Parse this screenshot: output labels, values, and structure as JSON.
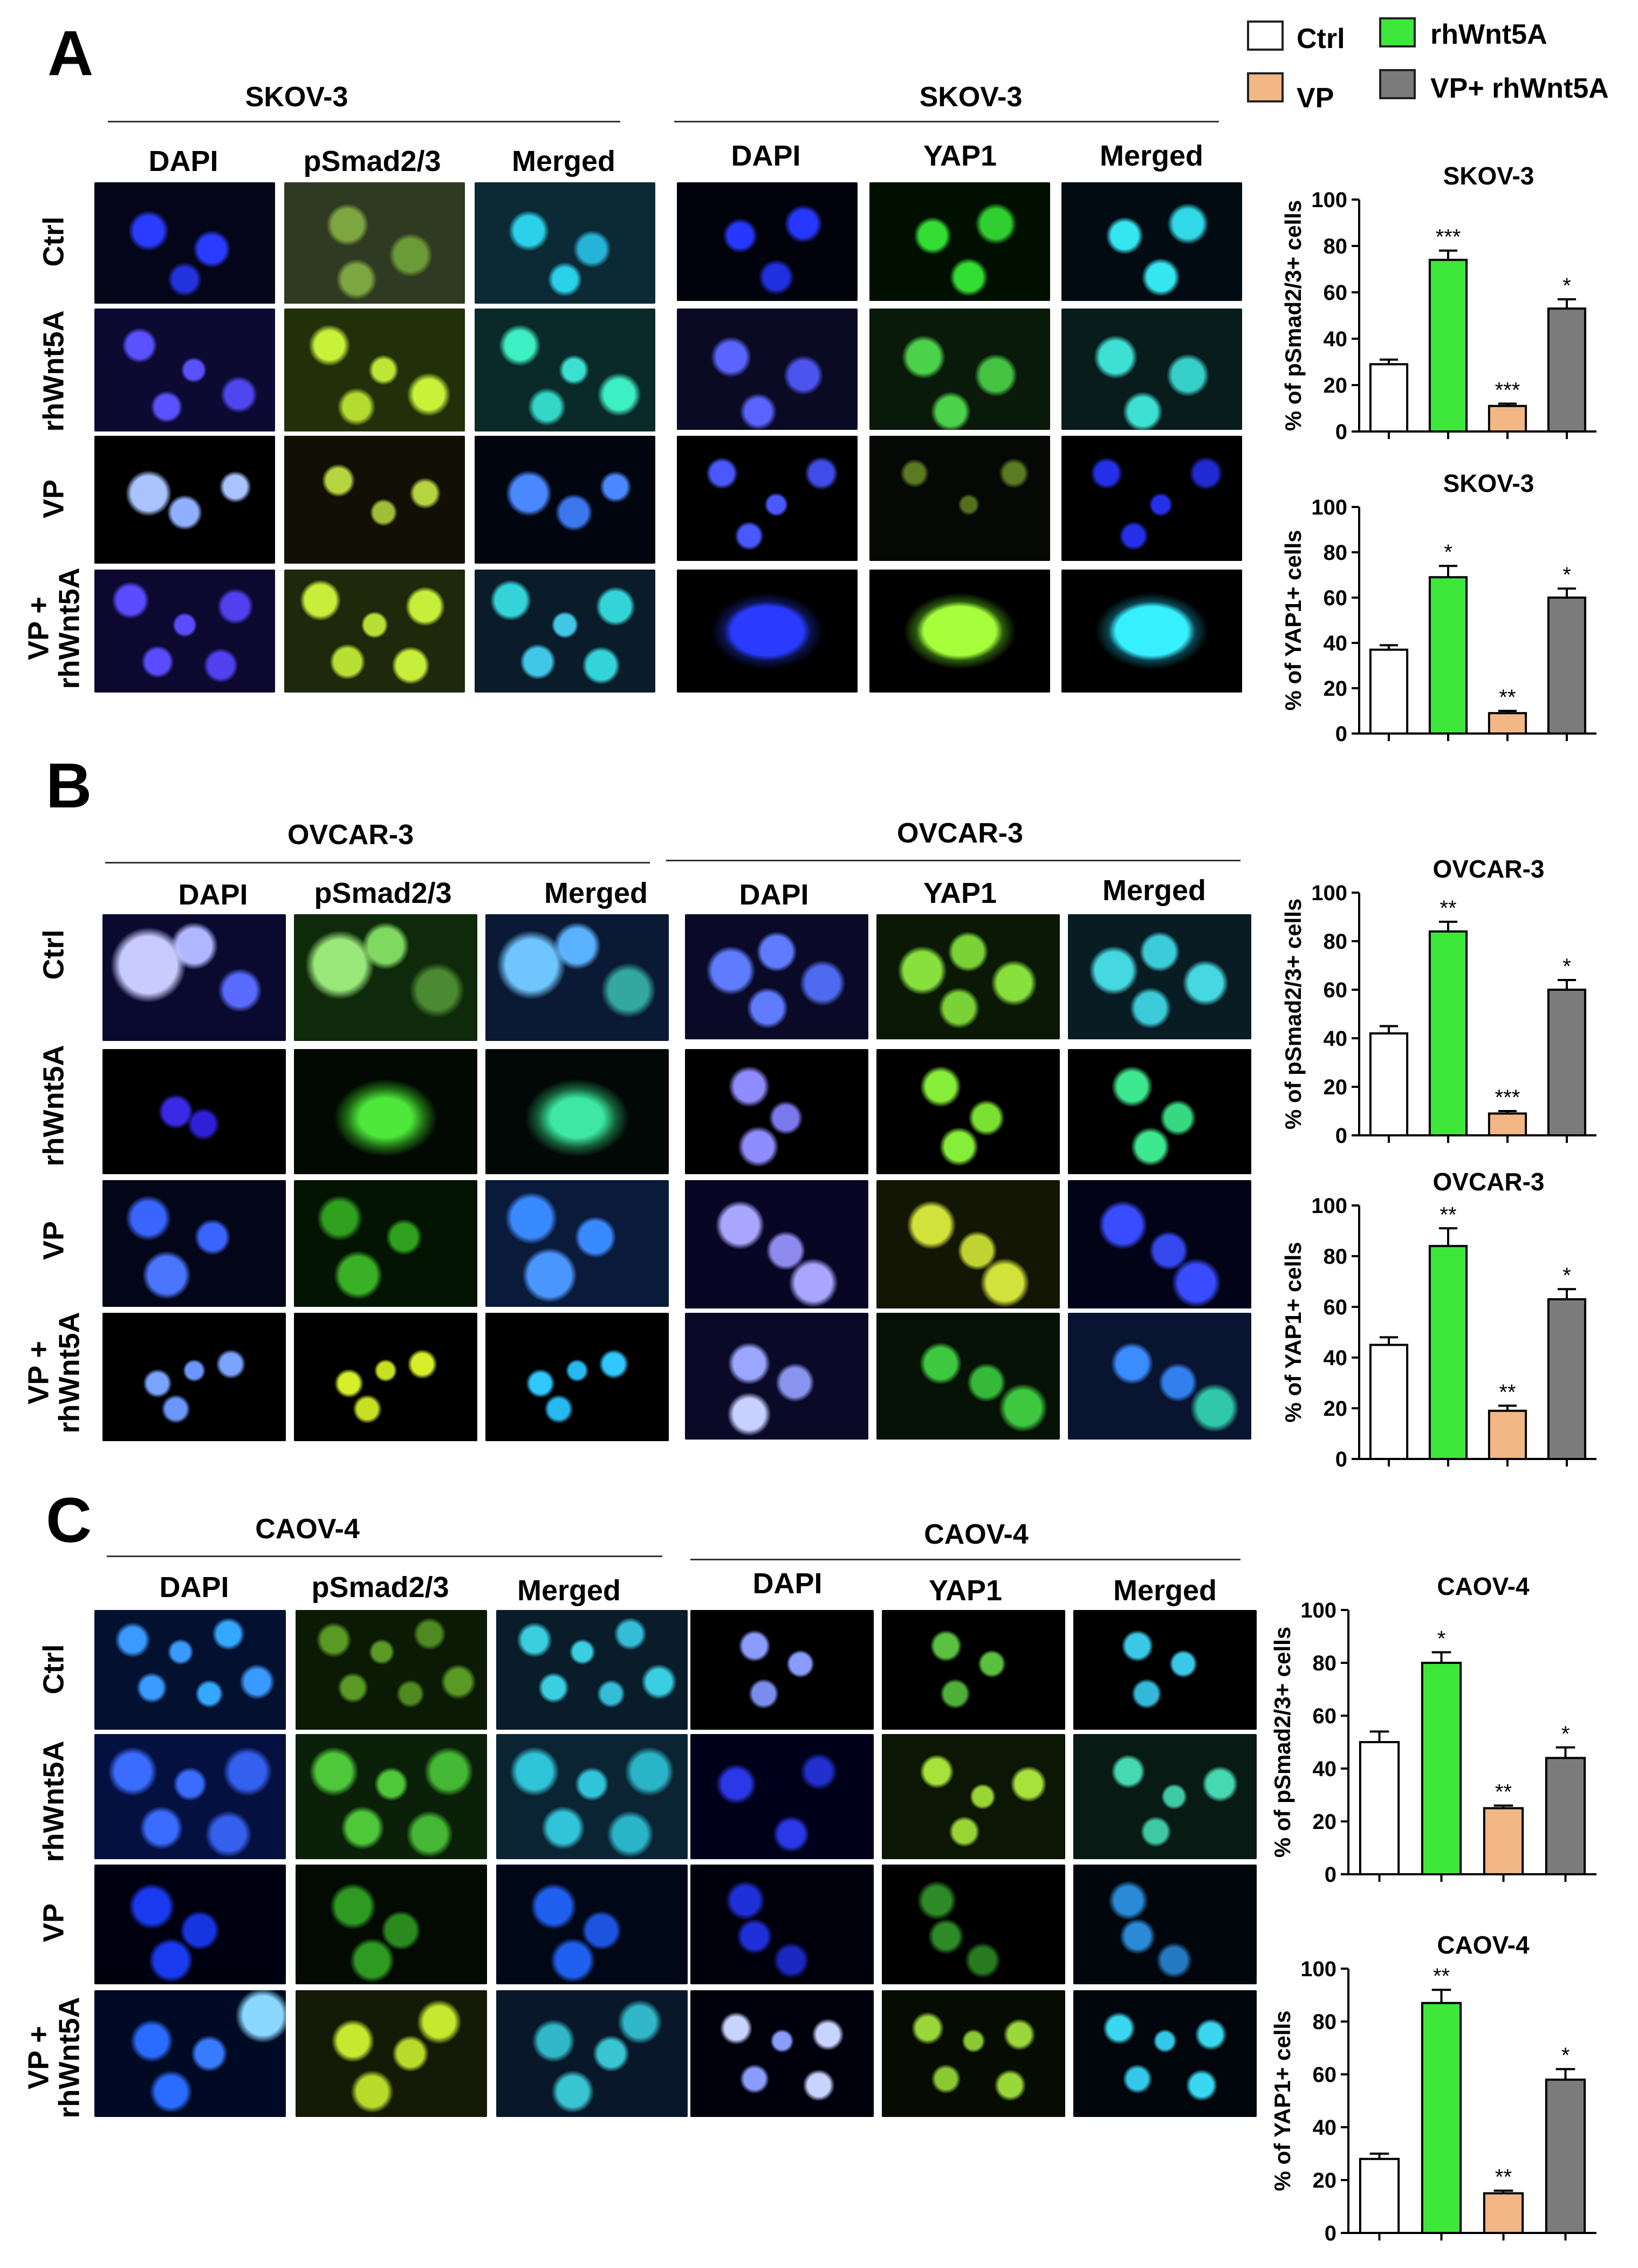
{
  "legend": [
    {
      "label": "Ctrl",
      "color": "#ffffff"
    },
    {
      "label": "rhWnt5A",
      "color": "#3ee83a"
    },
    {
      "label": "VP",
      "color": "#f2b784"
    },
    {
      "label": "VP+ rhWnt5A",
      "color": "#7b7b7b"
    }
  ],
  "column_labels": {
    "dapi": "DAPI",
    "psmad": "pSmad2/3",
    "yap": "YAP1",
    "merged": "Merged"
  },
  "row_labels": [
    "Ctrl",
    "rhWnt5A",
    "VP",
    "VP +\nrhWnt5A"
  ],
  "panels": [
    {
      "letter": "A",
      "cell_line": "SKOV-3"
    },
    {
      "letter": "B",
      "cell_line": "OVCAR-3"
    },
    {
      "letter": "C",
      "cell_line": "CAOV-4"
    }
  ],
  "chart_data": [
    {
      "type": "bar",
      "title": "SKOV-3",
      "ylabel": "% of pSmad2/3+ cells",
      "ylim": [
        0,
        100
      ],
      "ticks": [
        0,
        20,
        40,
        60,
        80,
        100
      ],
      "categories": [
        "Ctrl",
        "rhWnt5A",
        "VP",
        "VP+ rhWnt5A"
      ],
      "values": [
        29,
        74,
        11,
        53
      ],
      "errors": [
        2,
        4,
        1,
        4
      ],
      "significance": [
        "",
        "***",
        "***",
        "*"
      ]
    },
    {
      "type": "bar",
      "title": "SKOV-3",
      "ylabel": "% of YAP1+ cells",
      "ylim": [
        0,
        100
      ],
      "ticks": [
        0,
        20,
        40,
        60,
        80,
        100
      ],
      "categories": [
        "Ctrl",
        "rhWnt5A",
        "VP",
        "VP+ rhWnt5A"
      ],
      "values": [
        37,
        69,
        9,
        60
      ],
      "errors": [
        2,
        5,
        1,
        4
      ],
      "significance": [
        "",
        "*",
        "**",
        "*"
      ]
    },
    {
      "type": "bar",
      "title": "OVCAR-3",
      "ylabel": "% of pSmad2/3+ cells",
      "ylim": [
        0,
        100
      ],
      "ticks": [
        0,
        20,
        40,
        60,
        80,
        100
      ],
      "categories": [
        "Ctrl",
        "rhWnt5A",
        "VP",
        "VP+ rhWnt5A"
      ],
      "values": [
        42,
        84,
        9,
        60
      ],
      "errors": [
        3,
        4,
        1,
        4
      ],
      "significance": [
        "",
        "**",
        "***",
        "*"
      ]
    },
    {
      "type": "bar",
      "title": "OVCAR-3",
      "ylabel": "% of YAP1+ cells",
      "ylim": [
        0,
        100
      ],
      "ticks": [
        0,
        20,
        40,
        60,
        80,
        100
      ],
      "categories": [
        "Ctrl",
        "rhWnt5A",
        "VP",
        "VP+ rhWnt5A"
      ],
      "values": [
        45,
        84,
        19,
        63
      ],
      "errors": [
        3,
        7,
        2,
        4
      ],
      "significance": [
        "",
        "**",
        "**",
        "*"
      ]
    },
    {
      "type": "bar",
      "title": "CAOV-4",
      "ylabel": "% of pSmad2/3+ cells",
      "ylim": [
        0,
        100
      ],
      "ticks": [
        0,
        20,
        40,
        60,
        80,
        100
      ],
      "categories": [
        "Ctrl",
        "rhWnt5A",
        "VP",
        "VP+ rhWnt5A"
      ],
      "values": [
        50,
        80,
        25,
        44
      ],
      "errors": [
        4,
        4,
        1,
        4
      ],
      "significance": [
        "",
        "*",
        "**",
        "*"
      ]
    },
    {
      "type": "bar",
      "title": "CAOV-4",
      "ylabel": "% of YAP1+ cells",
      "ylim": [
        0,
        100
      ],
      "ticks": [
        0,
        20,
        40,
        60,
        80,
        100
      ],
      "categories": [
        "Ctrl",
        "rhWnt5A",
        "VP",
        "VP+ rhWnt5A"
      ],
      "values": [
        28,
        87,
        15,
        58
      ],
      "errors": [
        2,
        5,
        1,
        4
      ],
      "significance": [
        "",
        "**",
        "**",
        "*"
      ]
    }
  ]
}
